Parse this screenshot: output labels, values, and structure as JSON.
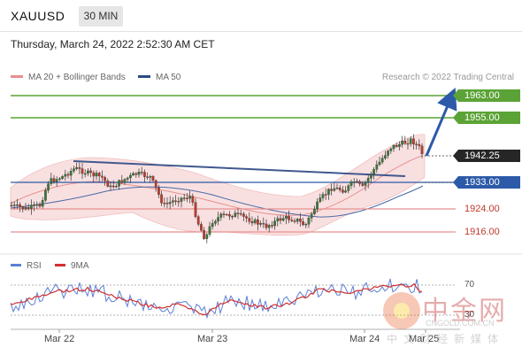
{
  "header": {
    "symbol": "XAUUSD",
    "timeframe": "30 MIN",
    "timestamp": "Thursday, March 24, 2022 2:52:30 AM CET"
  },
  "legend": {
    "ma20_label": "MA 20 + Bollinger Bands",
    "ma20_color": "#e88f8f",
    "ma50_label": "MA 50",
    "ma50_color": "#2c4a85",
    "credit": "Research © 2022 Trading Central"
  },
  "price_levels": {
    "r2": "1963.00",
    "r1": "1955.00",
    "last": "1942.25",
    "pivot": "1933.00",
    "s1": "1924.00",
    "s2": "1916.00"
  },
  "colors": {
    "resistance": "#5ba336",
    "pivot": "#2c5aa8",
    "support": "#e88f8f",
    "rsi": "#5b7fd6",
    "rsi_ma": "#d23030",
    "candle_up": "#3a7a3a",
    "candle_down": "#c0392b"
  },
  "rsi_panel": {
    "rsi_label": "RSI",
    "ma_label": "9MA",
    "level_70": "70",
    "level_30": "30"
  },
  "x_axis": {
    "labels": [
      "Mar 22",
      "Mar 23",
      "Mar 24",
      "Mar 25"
    ]
  },
  "watermark": {
    "big": "中金网",
    "url": "CNGOLD.COM.CN",
    "small": "中文财经新媒体"
  }
}
